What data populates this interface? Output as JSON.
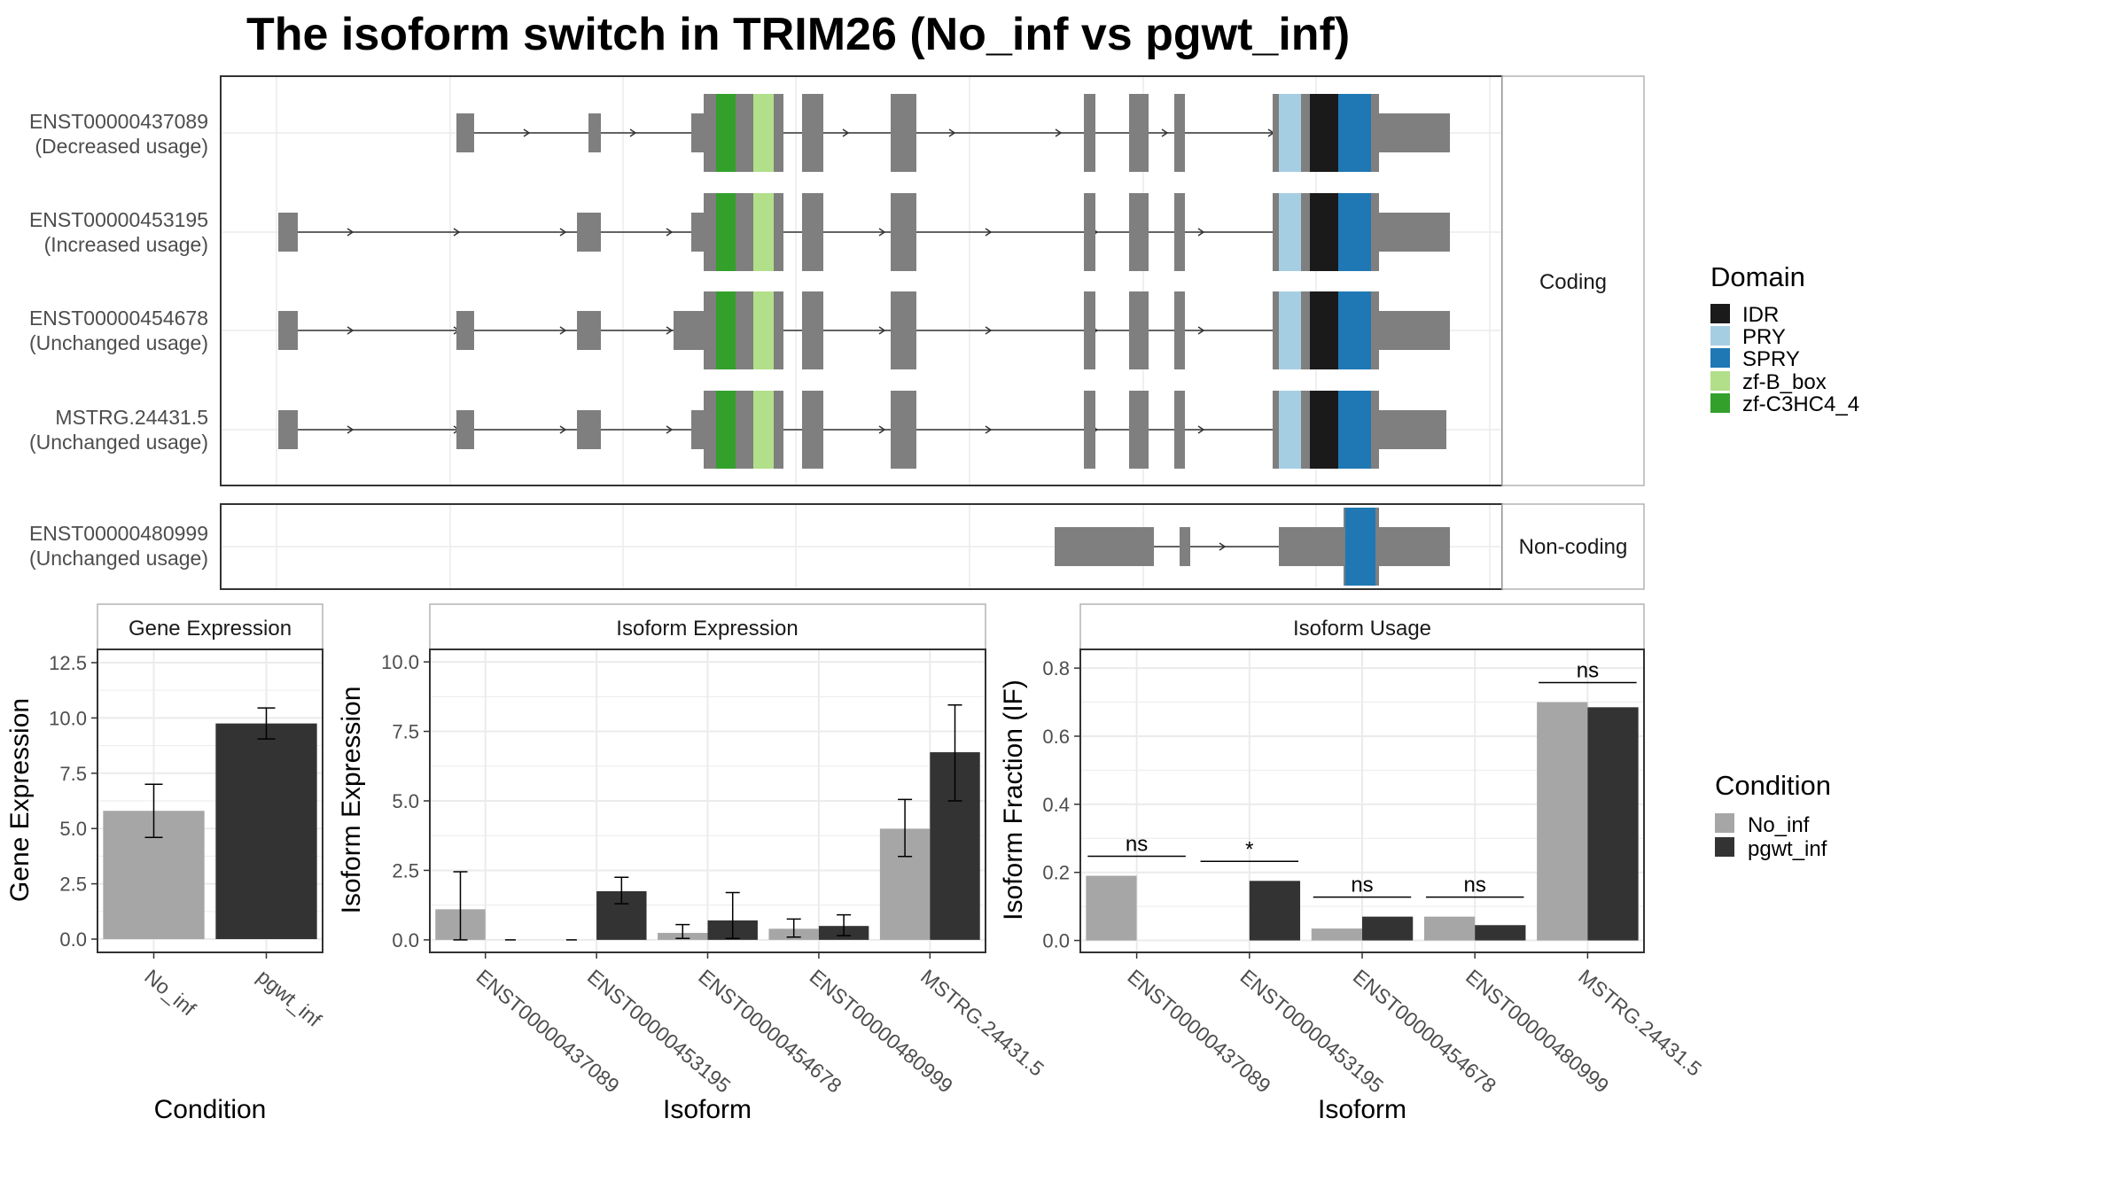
{
  "title": "The isoform switch in TRIM26 (No_inf vs pgwt_inf)",
  "colors": {
    "exon": "#7f7f7f",
    "line": "#333333",
    "IDR": "#1a1a1a",
    "PRY": "#a6cee3",
    "SPRY": "#1f78b4",
    "zf-B_box": "#b2df8a",
    "zf-C3HC4_4": "#33a02c",
    "No_inf": "#a6a6a6",
    "pgwt_inf": "#333333",
    "grid": "#ebebeb",
    "panel_border": "#333333",
    "strip_border": "#b3b3b3"
  },
  "transcripts": {
    "coding_label": "Coding",
    "noncoding_label": "Non-coding",
    "isoforms": [
      {
        "id": "ENST00000437089",
        "usage": "(Decreased usage)"
      },
      {
        "id": "ENST00000453195",
        "usage": "(Increased usage)"
      },
      {
        "id": "ENST00000454678",
        "usage": "(Unchanged usage)"
      },
      {
        "id": "MSTRG.24431.5",
        "usage": "(Unchanged usage)"
      },
      {
        "id": "ENST00000480999",
        "usage": "(Unchanged usage)"
      }
    ]
  },
  "domain_legend": {
    "title": "Domain",
    "items": [
      "IDR",
      "PRY",
      "SPRY",
      "zf-B_box",
      "zf-C3HC4_4"
    ]
  },
  "condition_legend": {
    "title": "Condition",
    "items": [
      "No_inf",
      "pgwt_inf"
    ]
  },
  "chart_data": [
    {
      "type": "bar",
      "title": "Gene Expression",
      "xlabel": "Condition",
      "ylabel": "Gene Expression",
      "categories": [
        "No_inf",
        "pgwt_inf"
      ],
      "values": [
        5.8,
        9.75
      ],
      "errors": [
        [
          4.6,
          7.0
        ],
        [
          9.05,
          10.45
        ]
      ],
      "ylim": [
        -0.6,
        13.1
      ],
      "yticks": [
        "0.0",
        "2.5",
        "5.0",
        "7.5",
        "10.0",
        "12.5"
      ],
      "ytick_values": [
        0,
        2.5,
        5,
        7.5,
        10,
        12.5
      ]
    },
    {
      "type": "bar",
      "title": "Isoform Expression",
      "xlabel": "Isoform",
      "ylabel": "Isoform Expression",
      "categories": [
        "ENST00000437089",
        "ENST00000453195",
        "ENST00000454678",
        "ENST00000480999",
        "MSTRG.24431.5"
      ],
      "series": [
        {
          "name": "No_inf",
          "values": [
            1.1,
            0.0,
            0.25,
            0.4,
            4.0
          ],
          "errors": [
            [
              0.0,
              2.45
            ],
            [
              0.0,
              0.0
            ],
            [
              0.05,
              0.55
            ],
            [
              0.1,
              0.75
            ],
            [
              3.0,
              5.05
            ]
          ]
        },
        {
          "name": "pgwt_inf",
          "values": [
            0.0,
            1.75,
            0.7,
            0.5,
            6.75
          ],
          "errors": [
            [
              0.0,
              0.0
            ],
            [
              1.3,
              2.25
            ],
            [
              0.05,
              1.7
            ],
            [
              0.15,
              0.9
            ],
            [
              5.0,
              8.45
            ]
          ]
        }
      ],
      "ylim": [
        -0.45,
        10.45
      ],
      "yticks": [
        "0.0",
        "2.5",
        "5.0",
        "7.5",
        "10.0"
      ],
      "ytick_values": [
        0,
        2.5,
        5,
        7.5,
        10
      ]
    },
    {
      "type": "bar",
      "title": "Isoform Usage",
      "xlabel": "Isoform",
      "ylabel": "Isoform Fraction (IF)",
      "categories": [
        "ENST00000437089",
        "ENST00000453195",
        "ENST00000454678",
        "ENST00000480999",
        "MSTRG.24431.5"
      ],
      "series": [
        {
          "name": "No_inf",
          "values": [
            0.19,
            0.0,
            0.035,
            0.07,
            0.7
          ]
        },
        {
          "name": "pgwt_inf",
          "values": [
            0.0,
            0.175,
            0.07,
            0.045,
            0.685
          ]
        }
      ],
      "significance": [
        "ns",
        "*",
        "ns",
        "ns",
        "ns"
      ],
      "ylim": [
        -0.035,
        0.855
      ],
      "yticks": [
        "0.0",
        "0.2",
        "0.4",
        "0.6",
        "0.8"
      ],
      "ytick_values": [
        0,
        0.2,
        0.4,
        0.6,
        0.8
      ]
    }
  ]
}
